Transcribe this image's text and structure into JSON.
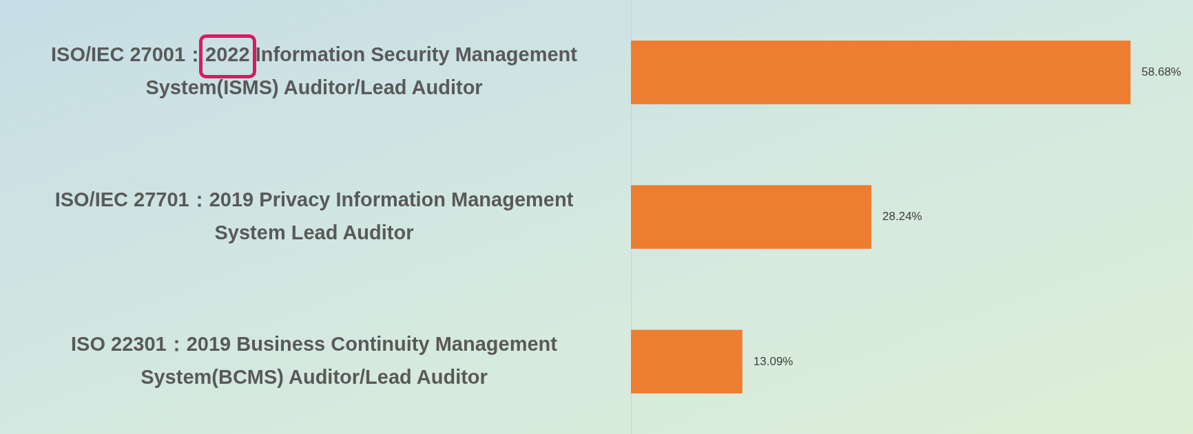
{
  "chart_data": {
    "type": "bar",
    "orientation": "horizontal",
    "categories": [
      "ISO/IEC 27001：2022 Information Security Management System(ISMS) Auditor/Lead Auditor",
      "ISO/IEC 27701：2019 Privacy Information Management System Lead Auditor",
      "ISO 22301：2019 Business Continuity Management System(BCMS) Auditor/Lead Auditor"
    ],
    "values": [
      58.68,
      28.24,
      13.09
    ],
    "value_labels": [
      "58.68%",
      "28.24%",
      "13.09%"
    ],
    "color": "#ed7d31",
    "grid": false,
    "legend": false,
    "tick_labels": "y"
  }
}
